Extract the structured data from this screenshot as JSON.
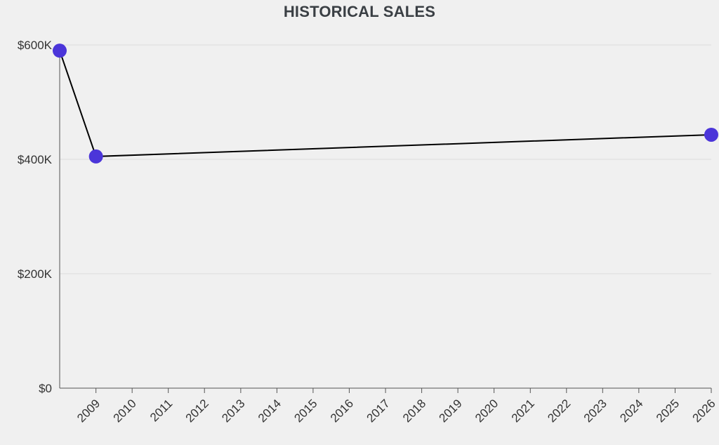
{
  "chart_data": {
    "type": "line",
    "title": "HISTORICAL SALES",
    "xlabel": "",
    "ylabel": "",
    "x_tick_labels": [
      "2009",
      "2010",
      "2011",
      "2012",
      "2013",
      "2014",
      "2015",
      "2016",
      "2017",
      "2018",
      "2019",
      "2020",
      "2021",
      "2022",
      "2023",
      "2024",
      "2025",
      "2026"
    ],
    "y_tick_labels": [
      "$0",
      "$200K",
      "$400K",
      "$600K"
    ],
    "y_ticks": [
      0,
      200000,
      400000,
      600000
    ],
    "ylim": [
      0,
      600000
    ],
    "xlim": [
      "2008-01-01",
      "2026-01-01"
    ],
    "grid": true,
    "series": [
      {
        "points": [
          {
            "x": "2008-01-01",
            "y": 590000
          },
          {
            "x": "2009-01-01",
            "y": 405000
          },
          {
            "x": "2026-01-01",
            "y": 443000
          }
        ]
      }
    ],
    "colors": {
      "line": "#000000",
      "marker": "#4b35d9",
      "grid": "#dcdcdc",
      "axis": "#555555",
      "background": "#f0f0f0"
    }
  }
}
